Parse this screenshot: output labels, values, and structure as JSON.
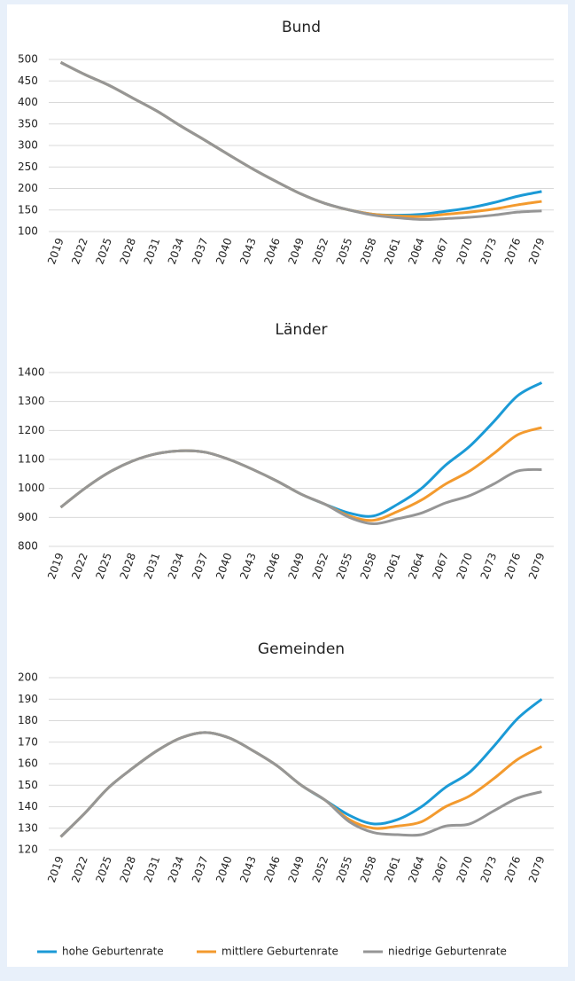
{
  "chart_data": [
    {
      "type": "line",
      "title": "Bund",
      "categories": [
        "2019",
        "2022",
        "2025",
        "2028",
        "2031",
        "2034",
        "2037",
        "2040",
        "2043",
        "2046",
        "2049",
        "2052",
        "2055",
        "2058",
        "2061",
        "2064",
        "2067",
        "2070",
        "2073",
        "2076",
        "2079"
      ],
      "series": [
        {
          "name": "hohe Geburtenrate",
          "color": "#1b9ad6",
          "values": [
            493,
            465,
            440,
            410,
            380,
            345,
            312,
            278,
            245,
            215,
            187,
            165,
            150,
            140,
            138,
            140,
            147,
            155,
            167,
            182,
            193
          ]
        },
        {
          "name": "mittlere Geburtenrate",
          "color": "#f39a2e",
          "values": [
            493,
            465,
            440,
            410,
            380,
            345,
            312,
            278,
            245,
            215,
            187,
            165,
            150,
            140,
            136,
            135,
            140,
            145,
            152,
            162,
            170
          ]
        },
        {
          "name": "niedrige Geburtenrate",
          "color": "#969696",
          "values": [
            493,
            465,
            440,
            410,
            380,
            345,
            312,
            278,
            245,
            215,
            187,
            165,
            150,
            138,
            132,
            128,
            130,
            133,
            138,
            145,
            148
          ]
        }
      ],
      "ylim": [
        100,
        500
      ],
      "yticks": [
        100,
        150,
        200,
        250,
        300,
        350,
        400,
        450,
        500
      ],
      "grid": true
    },
    {
      "type": "line",
      "title": "Länder",
      "categories": [
        "2019",
        "2022",
        "2025",
        "2028",
        "2031",
        "2034",
        "2037",
        "2040",
        "2043",
        "2046",
        "2049",
        "2052",
        "2055",
        "2058",
        "2061",
        "2064",
        "2067",
        "2070",
        "2073",
        "2076",
        "2079"
      ],
      "series": [
        {
          "name": "hohe Geburtenrate",
          "color": "#1b9ad6",
          "values": [
            935,
            1000,
            1055,
            1095,
            1120,
            1130,
            1125,
            1100,
            1065,
            1025,
            980,
            945,
            915,
            905,
            945,
            1000,
            1080,
            1145,
            1230,
            1320,
            1365
          ]
        },
        {
          "name": "mittlere Geburtenrate",
          "color": "#f39a2e",
          "values": [
            935,
            1000,
            1055,
            1095,
            1120,
            1130,
            1125,
            1100,
            1065,
            1025,
            980,
            945,
            905,
            890,
            920,
            960,
            1015,
            1060,
            1120,
            1185,
            1210
          ]
        },
        {
          "name": "niedrige Geburtenrate",
          "color": "#969696",
          "values": [
            935,
            1000,
            1055,
            1095,
            1120,
            1130,
            1125,
            1100,
            1065,
            1025,
            980,
            945,
            900,
            878,
            895,
            915,
            950,
            975,
            1015,
            1060,
            1065
          ]
        }
      ],
      "ylim": [
        800,
        1400
      ],
      "yticks": [
        800,
        900,
        1000,
        1100,
        1200,
        1300,
        1400
      ],
      "grid": true
    },
    {
      "type": "line",
      "title": "Gemeinden",
      "categories": [
        "2019",
        "2022",
        "2025",
        "2028",
        "2031",
        "2034",
        "2037",
        "2040",
        "2043",
        "2046",
        "2049",
        "2052",
        "2055",
        "2058",
        "2061",
        "2064",
        "2067",
        "2070",
        "2073",
        "2076",
        "2079"
      ],
      "series": [
        {
          "name": "hohe Geburtenrate",
          "color": "#1b9ad6",
          "values": [
            126,
            137,
            149,
            158,
            166,
            172,
            174.5,
            172,
            166,
            159,
            150,
            143,
            136,
            132,
            134,
            140,
            149,
            156,
            168,
            181,
            190
          ]
        },
        {
          "name": "mittlere Geburtenrate",
          "color": "#f39a2e",
          "values": [
            126,
            137,
            149,
            158,
            166,
            172,
            174.5,
            172,
            166,
            159,
            150,
            143,
            134,
            130,
            131,
            133,
            140,
            145,
            153,
            162,
            168
          ]
        },
        {
          "name": "niedrige Geburtenrate",
          "color": "#969696",
          "values": [
            126,
            137,
            149,
            158,
            166,
            172,
            174.5,
            172,
            166,
            159,
            150,
            143,
            133,
            128,
            127,
            127,
            131,
            132,
            138,
            144,
            147
          ]
        }
      ],
      "ylim": [
        120,
        200
      ],
      "yticks": [
        120,
        130,
        140,
        150,
        160,
        170,
        180,
        190,
        200
      ],
      "grid": true
    }
  ]
}
